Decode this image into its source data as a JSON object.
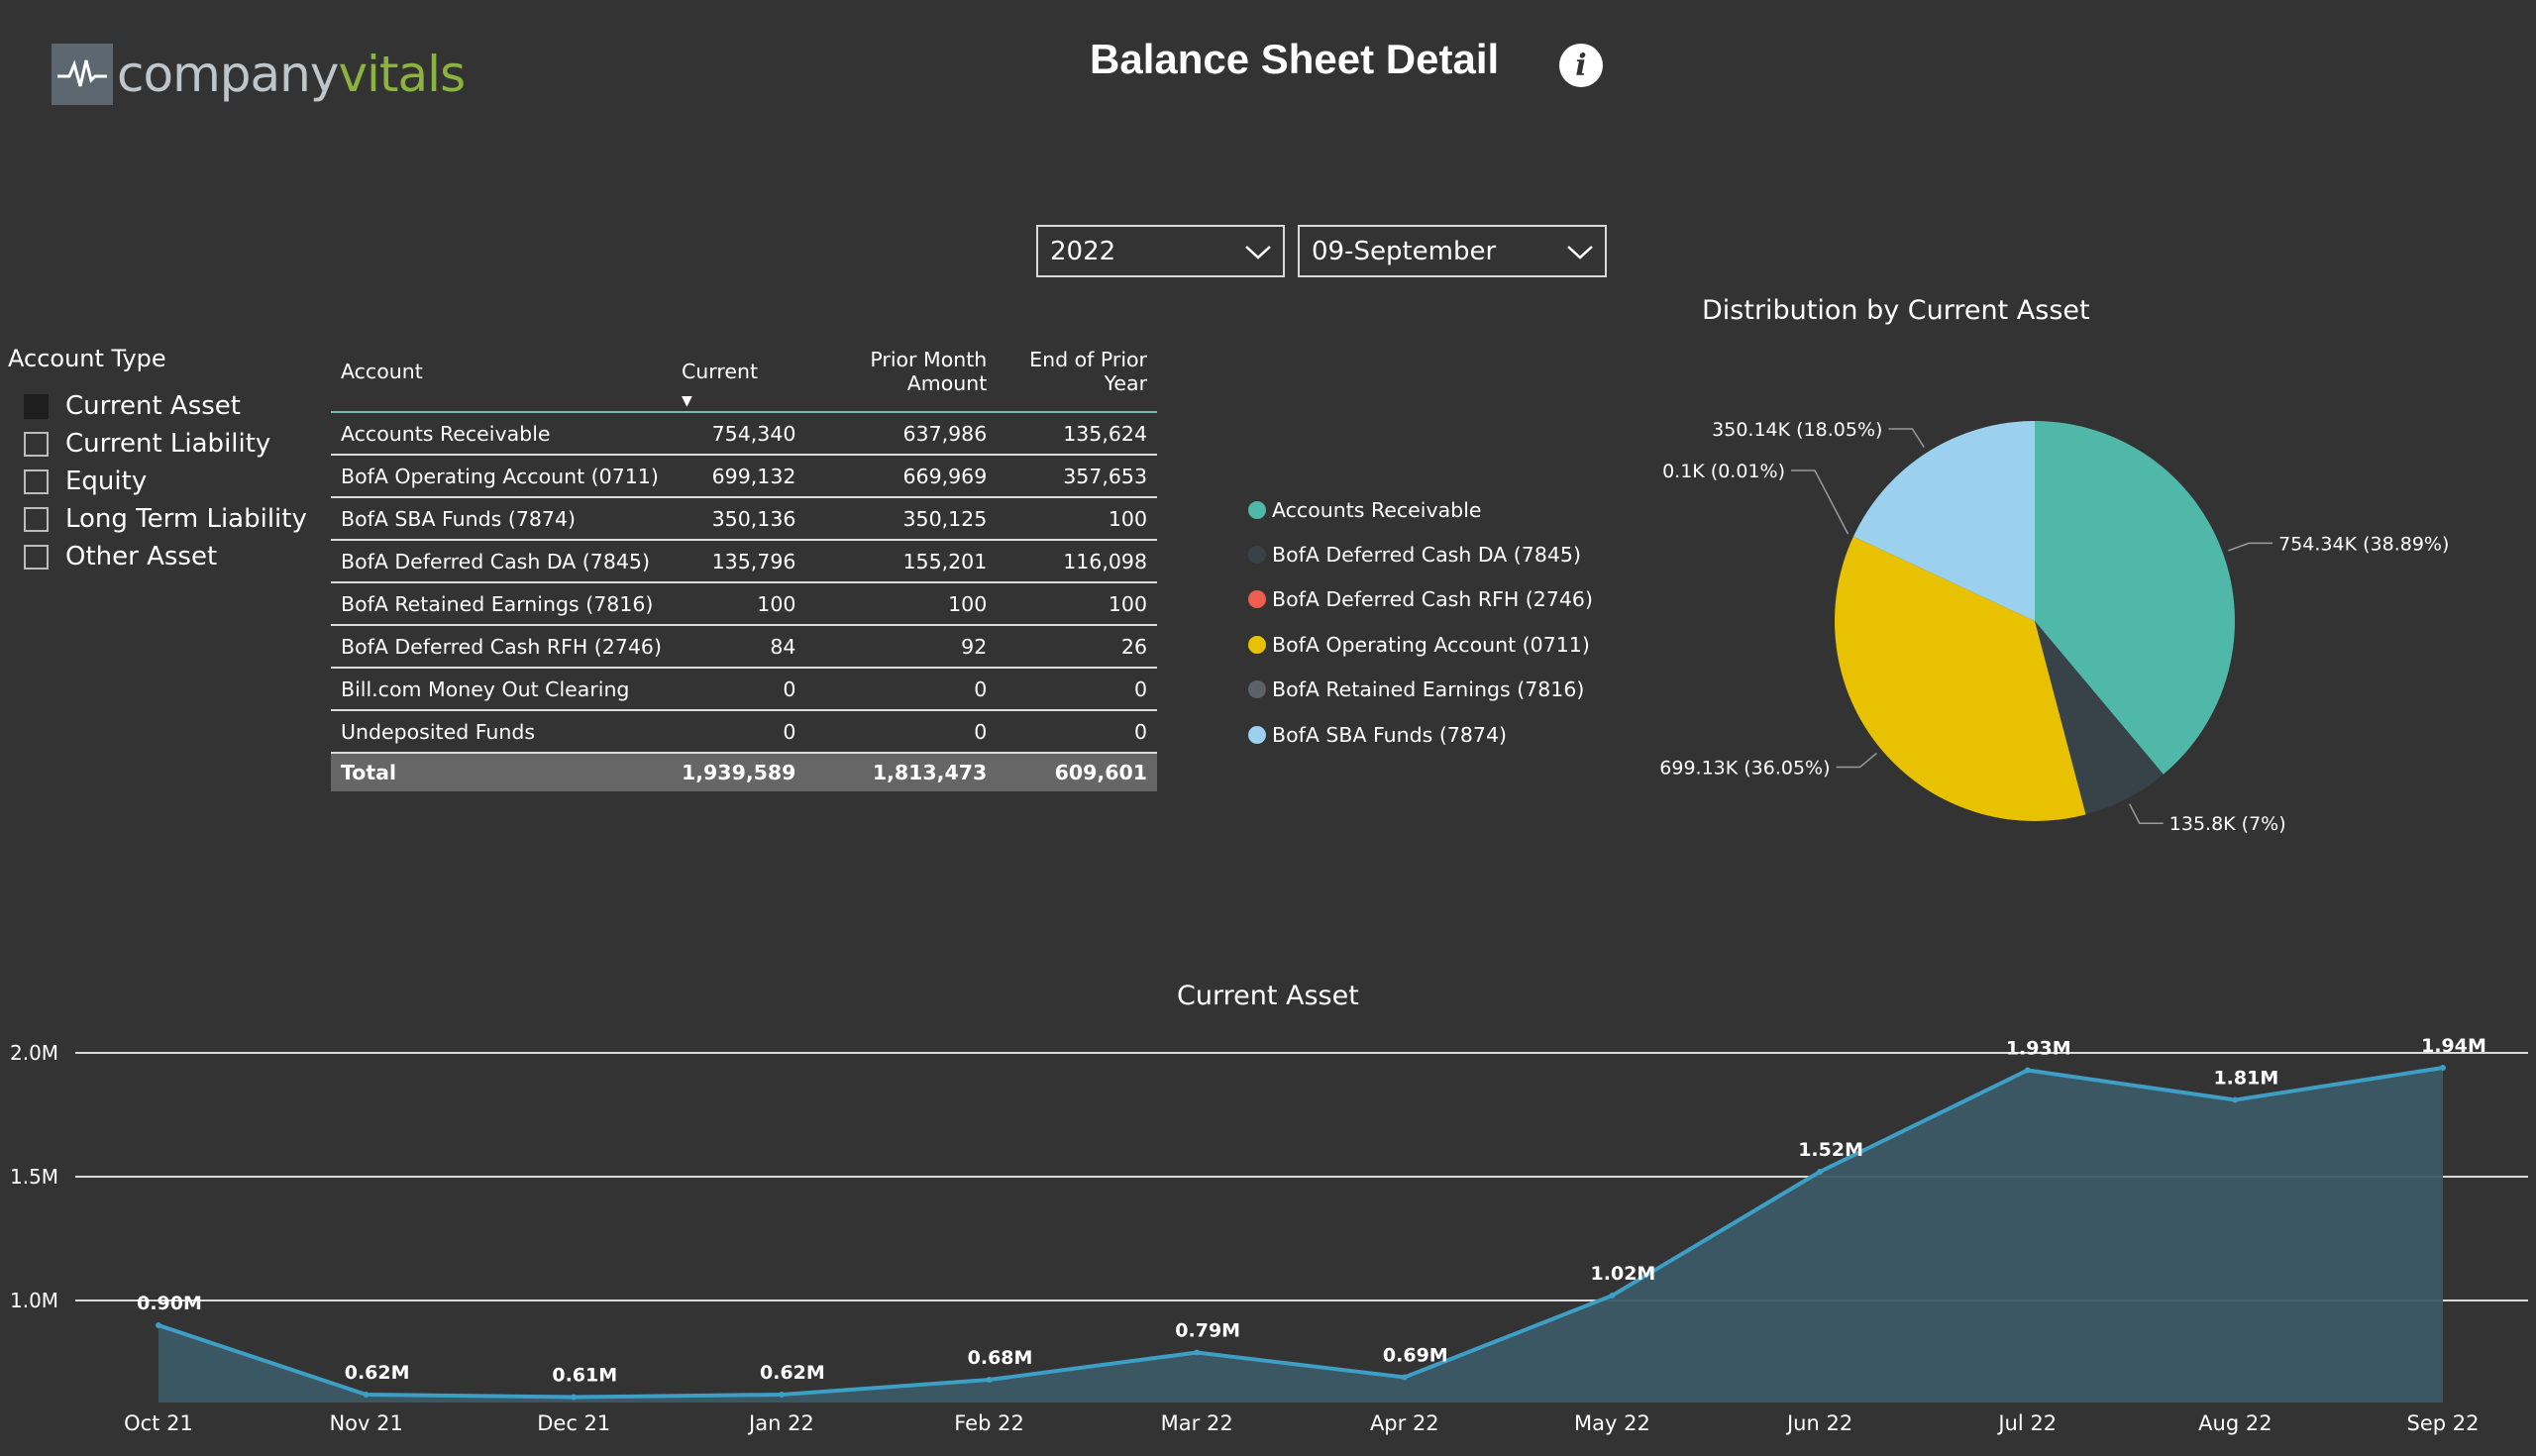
{
  "logo": {
    "part1": "company",
    "part2": "vitals"
  },
  "title": "Balance Sheet Detail",
  "filters": {
    "year": "2022",
    "month": "09-September"
  },
  "slicer": {
    "title": "Account Type",
    "items": [
      {
        "label": "Current Asset",
        "checked": true
      },
      {
        "label": "Current Liability",
        "checked": false
      },
      {
        "label": "Equity",
        "checked": false
      },
      {
        "label": "Long Term Liability",
        "checked": false
      },
      {
        "label": "Other Asset",
        "checked": false
      }
    ]
  },
  "table": {
    "headers": [
      "Account",
      "Current",
      "Prior Month Amount",
      "End of Prior Year"
    ],
    "rows": [
      [
        "Accounts Receivable",
        "754,340",
        "637,986",
        "135,624"
      ],
      [
        "BofA Operating Account (0711)",
        "699,132",
        "669,969",
        "357,653"
      ],
      [
        "BofA SBA Funds (7874)",
        "350,136",
        "350,125",
        "100"
      ],
      [
        "BofA Deferred Cash DA (7845)",
        "135,796",
        "155,201",
        "116,098"
      ],
      [
        "BofA Retained Earnings (7816)",
        "100",
        "100",
        "100"
      ],
      [
        "BofA Deferred Cash RFH (2746)",
        "84",
        "92",
        "26"
      ],
      [
        "Bill.com Money Out Clearing",
        "0",
        "0",
        "0"
      ],
      [
        "Undeposited Funds",
        "0",
        "0",
        "0"
      ]
    ],
    "total": [
      "Total",
      "1,939,589",
      "1,813,473",
      "609,601"
    ]
  },
  "legend": [
    {
      "label": "Accounts Receivable",
      "color": "#4fb8a9"
    },
    {
      "label": "BofA Deferred Cash DA (7845)",
      "color": "#374249"
    },
    {
      "label": "BofA Deferred Cash RFH (2746)",
      "color": "#ee5d4e"
    },
    {
      "label": "BofA Operating Account (0711)",
      "color": "#e8c200"
    },
    {
      "label": "BofA Retained Earnings (7816)",
      "color": "#5b6366"
    },
    {
      "label": "BofA SBA Funds (7874)",
      "color": "#9bd1ee"
    }
  ],
  "chart_data": [
    {
      "type": "pie",
      "title": "Distribution by Current Asset",
      "slices": [
        {
          "name": "Accounts Receivable",
          "value": 754.34,
          "label": "754.34K (38.89%)",
          "color": "#4fb8a9"
        },
        {
          "name": "BofA Deferred Cash DA (7845)",
          "value": 135.8,
          "label": "135.8K (7%)",
          "color": "#374249"
        },
        {
          "name": "BofA Operating Account (0711)",
          "value": 699.13,
          "label": "699.13K (36.05%)",
          "color": "#e8c200"
        },
        {
          "name": "BofA Retained Earnings (7816)",
          "value": 0.1,
          "label": "0.1K (0.01%)",
          "color": "#5b6366"
        },
        {
          "name": "BofA SBA Funds (7874)",
          "value": 350.14,
          "label": "350.14K (18.05%)",
          "color": "#9bd1ee"
        }
      ]
    },
    {
      "type": "area",
      "title": "Current Asset",
      "categories": [
        "Oct 21",
        "Nov 21",
        "Dec 21",
        "Jan 22",
        "Feb 22",
        "Mar 22",
        "Apr 22",
        "May 22",
        "Jun 22",
        "Jul 22",
        "Aug 22",
        "Sep 22"
      ],
      "values": [
        0.9,
        0.62,
        0.61,
        0.62,
        0.68,
        0.79,
        0.69,
        1.02,
        1.52,
        1.93,
        1.81,
        1.94
      ],
      "labels": [
        "0.90M",
        "0.62M",
        "0.61M",
        "0.62M",
        "0.68M",
        "0.79M",
        "0.69M",
        "1.02M",
        "1.52M",
        "1.93M",
        "1.81M",
        "1.94M"
      ],
      "yticks": [
        1.0,
        1.5,
        2.0
      ],
      "ytick_labels": [
        "1.0M",
        "1.5M",
        "2.0M"
      ],
      "grid": true,
      "line_color": "#3d9ec6",
      "fill_color": "#3b5a66"
    }
  ]
}
